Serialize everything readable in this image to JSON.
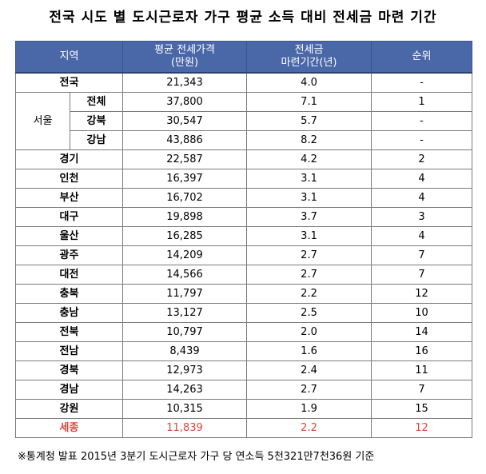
{
  "title": "전국 시도 별 도시근로자 가구 평균 소득 대비 전세금 마련 기간",
  "table": {
    "headers": {
      "region": "지역",
      "avg_price_line1": "평균 전세가격",
      "avg_price_line2": "(만원)",
      "period_line1": "전세금",
      "period_line2": "마련기간(년)",
      "rank": "순위"
    },
    "rows": [
      {
        "region": "전국",
        "price": "21,343",
        "period": "4.0",
        "rank": "-"
      },
      {
        "group": "서울",
        "region": "전체",
        "price": "37,800",
        "period": "7.1",
        "rank": "1"
      },
      {
        "region": "강북",
        "price": "30,547",
        "period": "5.7",
        "rank": "-"
      },
      {
        "region": "강남",
        "price": "43,886",
        "period": "8.2",
        "rank": "-"
      },
      {
        "region": "경기",
        "price": "22,587",
        "period": "4.2",
        "rank": "2"
      },
      {
        "region": "인천",
        "price": "16,397",
        "period": "3.1",
        "rank": "4"
      },
      {
        "region": "부산",
        "price": "16,702",
        "period": "3.1",
        "rank": "4"
      },
      {
        "region": "대구",
        "price": "19,898",
        "period": "3.7",
        "rank": "3"
      },
      {
        "region": "울산",
        "price": "16,285",
        "period": "3.1",
        "rank": "4"
      },
      {
        "region": "광주",
        "price": "14,209",
        "period": "2.7",
        "rank": "7"
      },
      {
        "region": "대전",
        "price": "14,566",
        "period": "2.7",
        "rank": "7"
      },
      {
        "region": "충북",
        "price": "11,797",
        "period": "2.2",
        "rank": "12"
      },
      {
        "region": "충남",
        "price": "13,127",
        "period": "2.5",
        "rank": "10"
      },
      {
        "region": "전북",
        "price": "10,797",
        "period": "2.0",
        "rank": "14"
      },
      {
        "region": "전남",
        "price": "8,439",
        "period": "1.6",
        "rank": "16"
      },
      {
        "region": "경북",
        "price": "12,973",
        "period": "2.4",
        "rank": "11"
      },
      {
        "region": "경남",
        "price": "14,263",
        "period": "2.7",
        "rank": "7"
      },
      {
        "region": "강원",
        "price": "10,315",
        "period": "1.9",
        "rank": "15"
      },
      {
        "region": "세종",
        "price": "11,839",
        "period": "2.2",
        "rank": "12"
      }
    ]
  },
  "highlight_color": "#e0443c",
  "header_color": "#4a68a8",
  "footnote": "※통계청 발표 2015년 3분기 도시근로자 가구 당 연소득 5천321만7천36원 기준"
}
